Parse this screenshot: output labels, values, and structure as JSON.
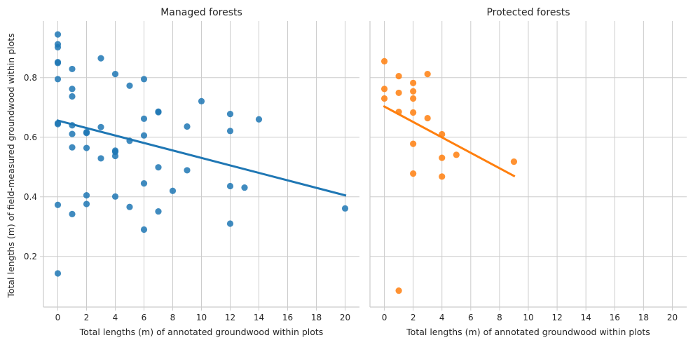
{
  "chart_data": {
    "type": "scatter",
    "shared_ylabel": "Total lengths (m) of field-measured groundwood within plots",
    "ylim": [
      0.03,
      0.99
    ],
    "yticks": [
      0.2,
      0.4,
      0.6,
      0.8
    ],
    "grid": true,
    "panels": [
      {
        "title": "Managed forests",
        "xlabel": "Total lengths (m) of annotated groundwood within plots",
        "xlim": [
          -1,
          21
        ],
        "xticks": [
          0,
          2,
          4,
          6,
          8,
          10,
          12,
          14,
          16,
          18,
          20
        ],
        "color": "#1f77b4",
        "points": [
          [
            0,
            0.945
          ],
          [
            0,
            0.912
          ],
          [
            0,
            0.902
          ],
          [
            0,
            0.852
          ],
          [
            0,
            0.849
          ],
          [
            0,
            0.795
          ],
          [
            0,
            0.647
          ],
          [
            0,
            0.644
          ],
          [
            0,
            0.373
          ],
          [
            0,
            0.143
          ],
          [
            1,
            0.829
          ],
          [
            1,
            0.762
          ],
          [
            1,
            0.737
          ],
          [
            1,
            0.64
          ],
          [
            1,
            0.611
          ],
          [
            1,
            0.566
          ],
          [
            1,
            0.342
          ],
          [
            2,
            0.617
          ],
          [
            2,
            0.614
          ],
          [
            2,
            0.564
          ],
          [
            2,
            0.405
          ],
          [
            2,
            0.376
          ],
          [
            3,
            0.865
          ],
          [
            3,
            0.634
          ],
          [
            3,
            0.529
          ],
          [
            4,
            0.812
          ],
          [
            4,
            0.555
          ],
          [
            4,
            0.551
          ],
          [
            4,
            0.537
          ],
          [
            4,
            0.401
          ],
          [
            5,
            0.773
          ],
          [
            5,
            0.588
          ],
          [
            5,
            0.366
          ],
          [
            6,
            0.795
          ],
          [
            6,
            0.662
          ],
          [
            6,
            0.606
          ],
          [
            6,
            0.445
          ],
          [
            6,
            0.29
          ],
          [
            7,
            0.686
          ],
          [
            7,
            0.684
          ],
          [
            7,
            0.499
          ],
          [
            7,
            0.351
          ],
          [
            8,
            0.42
          ],
          [
            9,
            0.636
          ],
          [
            9,
            0.489
          ],
          [
            10,
            0.721
          ],
          [
            12,
            0.678
          ],
          [
            12,
            0.621
          ],
          [
            12,
            0.436
          ],
          [
            12,
            0.31
          ],
          [
            13,
            0.431
          ],
          [
            14,
            0.66
          ],
          [
            20,
            0.361
          ]
        ],
        "regression": {
          "x": [
            0,
            20
          ],
          "y": [
            0.656,
            0.405
          ]
        }
      },
      {
        "title": "Protected forests",
        "xlabel": "Total lengths (m) of annotated groundwood within plots",
        "xlim": [
          -1,
          21
        ],
        "xticks": [
          0,
          2,
          4,
          6,
          8,
          10,
          12,
          14,
          16,
          18,
          20
        ],
        "color": "#ff7f0e",
        "points": [
          [
            0,
            0.855
          ],
          [
            0,
            0.762
          ],
          [
            0,
            0.73
          ],
          [
            1,
            0.805
          ],
          [
            1,
            0.749
          ],
          [
            1,
            0.685
          ],
          [
            1,
            0.085
          ],
          [
            2,
            0.782
          ],
          [
            2,
            0.754
          ],
          [
            2,
            0.73
          ],
          [
            2,
            0.683
          ],
          [
            2,
            0.578
          ],
          [
            2,
            0.478
          ],
          [
            3,
            0.812
          ],
          [
            3,
            0.664
          ],
          [
            4,
            0.61
          ],
          [
            4,
            0.531
          ],
          [
            4,
            0.468
          ],
          [
            5,
            0.541
          ],
          [
            9,
            0.518
          ]
        ],
        "regression": {
          "x": [
            0,
            9
          ],
          "y": [
            0.703,
            0.47
          ]
        }
      }
    ]
  }
}
